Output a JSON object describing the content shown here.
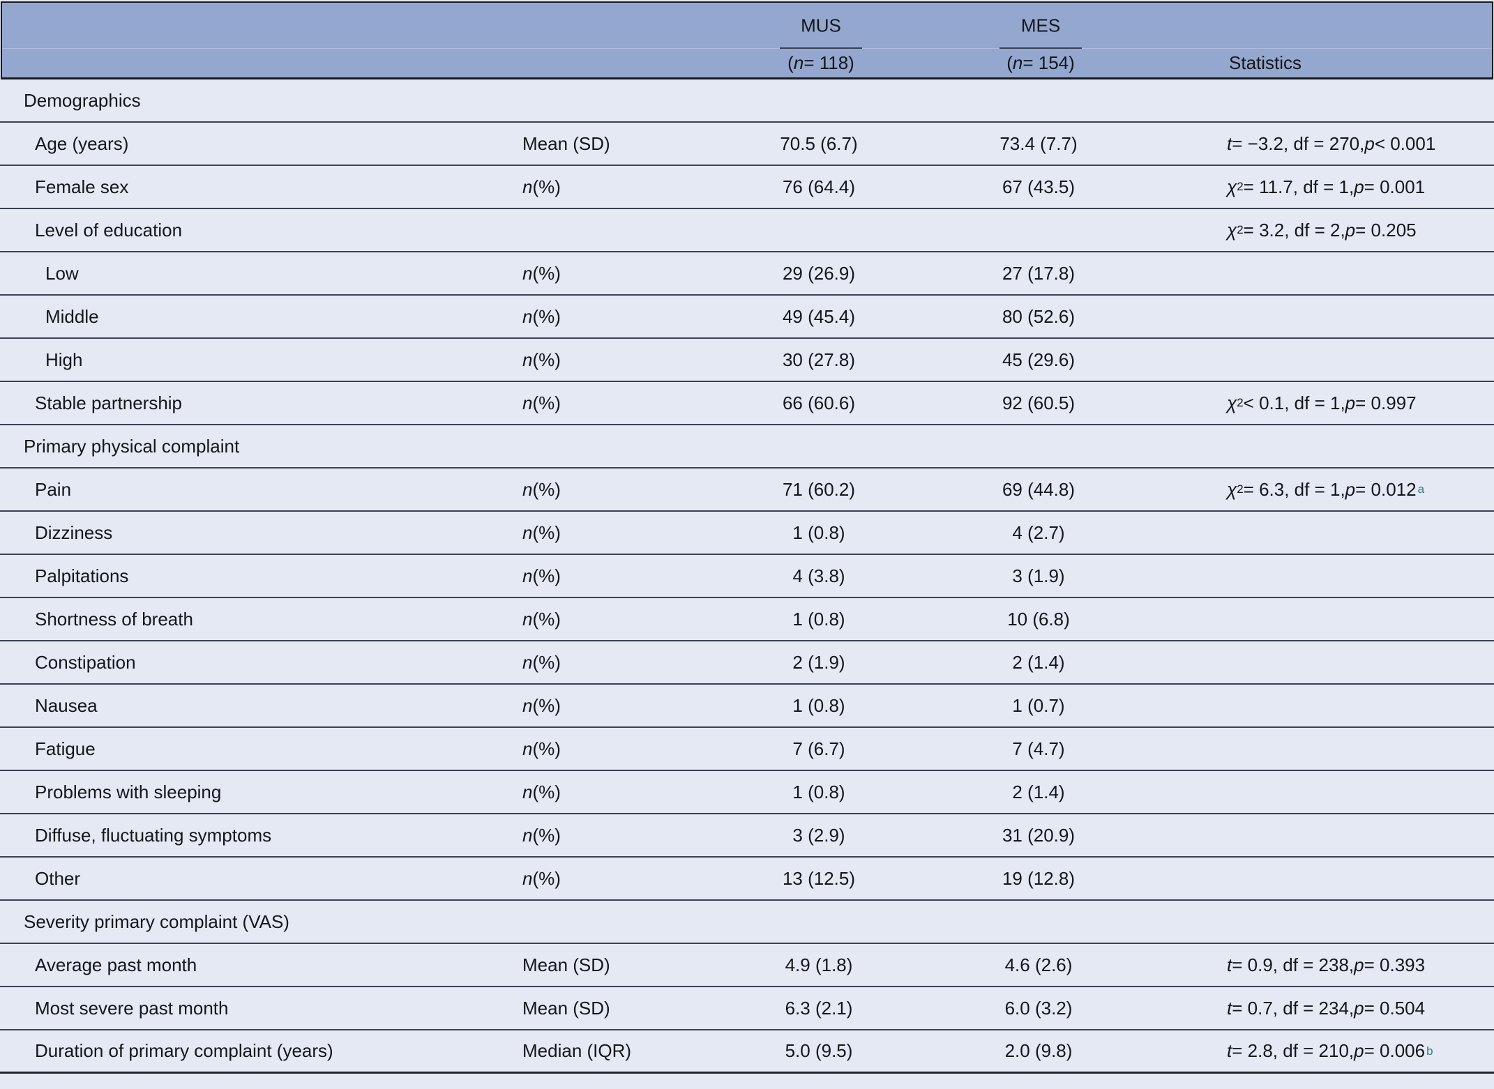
{
  "header": {
    "groups": [
      {
        "label": "MUS",
        "n_open": "(",
        "n_italic": "n",
        "n_rest": " = 118)"
      },
      {
        "label": "MES",
        "n_open": "(",
        "n_italic": "n",
        "n_rest": " = 154)"
      }
    ],
    "stats_label": "Statistics"
  },
  "rows": [
    {
      "type": "section",
      "label": "Demographics",
      "measure_italic": "",
      "measure_rest": "",
      "mus": "",
      "mes": "",
      "stat": {
        "lead_italic": "",
        "sup": "",
        "mid": "",
        "p_italic": "",
        "tail": "",
        "note": ""
      }
    },
    {
      "type": "item",
      "label": "Age (years)",
      "measure_italic": "",
      "measure_rest": "Mean (SD)",
      "mus": "70.5 (6.7)",
      "mes": "73.4 (7.7)",
      "stat": {
        "lead_italic": "t",
        "sup": "",
        "mid": " = −3.2, df = 270, ",
        "p_italic": "p",
        "tail": " < 0.001",
        "note": ""
      }
    },
    {
      "type": "item",
      "label": "Female sex",
      "measure_italic": "n",
      "measure_rest": " (%)",
      "mus": "76 (64.4)",
      "mes": "67 (43.5)",
      "stat": {
        "lead_italic": "χ",
        "sup": "2",
        "mid": " = 11.7, df = 1, ",
        "p_italic": "p",
        "tail": " = 0.001",
        "note": ""
      }
    },
    {
      "type": "item",
      "label": "Level of education",
      "measure_italic": "",
      "measure_rest": "",
      "mus": "",
      "mes": "",
      "stat": {
        "lead_italic": "χ",
        "sup": "2",
        "mid": " = 3.2, df = 2, ",
        "p_italic": "p",
        "tail": " = 0.205",
        "note": ""
      }
    },
    {
      "type": "subitem",
      "label": "Low",
      "measure_italic": "n",
      "measure_rest": " (%)",
      "mus": "29 (26.9)",
      "mes": "27 (17.8)",
      "stat": {
        "lead_italic": "",
        "sup": "",
        "mid": "",
        "p_italic": "",
        "tail": "",
        "note": ""
      }
    },
    {
      "type": "subitem",
      "label": "Middle",
      "measure_italic": "n",
      "measure_rest": " (%)",
      "mus": "49 (45.4)",
      "mes": "80 (52.6)",
      "stat": {
        "lead_italic": "",
        "sup": "",
        "mid": "",
        "p_italic": "",
        "tail": "",
        "note": ""
      }
    },
    {
      "type": "subitem",
      "label": "High",
      "measure_italic": "n",
      "measure_rest": " (%)",
      "mus": "30 (27.8)",
      "mes": "45 (29.6)",
      "stat": {
        "lead_italic": "",
        "sup": "",
        "mid": "",
        "p_italic": "",
        "tail": "",
        "note": ""
      }
    },
    {
      "type": "item",
      "label": "Stable partnership",
      "measure_italic": "n",
      "measure_rest": " (%)",
      "mus": "66 (60.6)",
      "mes": "92 (60.5)",
      "stat": {
        "lead_italic": "χ",
        "sup": "2",
        "mid": " < 0.1, df = 1, ",
        "p_italic": "p",
        "tail": " = 0.997",
        "note": ""
      }
    },
    {
      "type": "section",
      "label": "Primary physical complaint",
      "measure_italic": "",
      "measure_rest": "",
      "mus": "",
      "mes": "",
      "stat": {
        "lead_italic": "",
        "sup": "",
        "mid": "",
        "p_italic": "",
        "tail": "",
        "note": ""
      }
    },
    {
      "type": "item",
      "label": "Pain",
      "measure_italic": "n",
      "measure_rest": " (%)",
      "mus": "71 (60.2)",
      "mes": "69 (44.8)",
      "stat": {
        "lead_italic": "χ",
        "sup": "2",
        "mid": " = 6.3, df = 1, ",
        "p_italic": "p",
        "tail": " = 0.012",
        "note": "a"
      }
    },
    {
      "type": "item",
      "label": "Dizziness",
      "measure_italic": "n",
      "measure_rest": " (%)",
      "mus": "1 (0.8)",
      "mes": "4 (2.7)",
      "stat": {
        "lead_italic": "",
        "sup": "",
        "mid": "",
        "p_italic": "",
        "tail": "",
        "note": ""
      }
    },
    {
      "type": "item",
      "label": "Palpitations",
      "measure_italic": "n",
      "measure_rest": " (%)",
      "mus": "4 (3.8)",
      "mes": "3 (1.9)",
      "stat": {
        "lead_italic": "",
        "sup": "",
        "mid": "",
        "p_italic": "",
        "tail": "",
        "note": ""
      }
    },
    {
      "type": "item",
      "label": "Shortness of breath",
      "measure_italic": "n",
      "measure_rest": " (%)",
      "mus": "1 (0.8)",
      "mes": "10 (6.8)",
      "stat": {
        "lead_italic": "",
        "sup": "",
        "mid": "",
        "p_italic": "",
        "tail": "",
        "note": ""
      }
    },
    {
      "type": "item",
      "label": "Constipation",
      "measure_italic": "n",
      "measure_rest": " (%)",
      "mus": "2 (1.9)",
      "mes": "2 (1.4)",
      "stat": {
        "lead_italic": "",
        "sup": "",
        "mid": "",
        "p_italic": "",
        "tail": "",
        "note": ""
      }
    },
    {
      "type": "item",
      "label": "Nausea",
      "measure_italic": "n",
      "measure_rest": " (%)",
      "mus": "1 (0.8)",
      "mes": "1 (0.7)",
      "stat": {
        "lead_italic": "",
        "sup": "",
        "mid": "",
        "p_italic": "",
        "tail": "",
        "note": ""
      }
    },
    {
      "type": "item",
      "label": "Fatigue",
      "measure_italic": "n",
      "measure_rest": " (%)",
      "mus": "7 (6.7)",
      "mes": "7 (4.7)",
      "stat": {
        "lead_italic": "",
        "sup": "",
        "mid": "",
        "p_italic": "",
        "tail": "",
        "note": ""
      }
    },
    {
      "type": "item",
      "label": "Problems with sleeping",
      "measure_italic": "n",
      "measure_rest": " (%)",
      "mus": "1 (0.8)",
      "mes": "2 (1.4)",
      "stat": {
        "lead_italic": "",
        "sup": "",
        "mid": "",
        "p_italic": "",
        "tail": "",
        "note": ""
      }
    },
    {
      "type": "item",
      "label": "Diffuse, fluctuating symptoms",
      "measure_italic": "n",
      "measure_rest": " (%)",
      "mus": "3 (2.9)",
      "mes": "31 (20.9)",
      "stat": {
        "lead_italic": "",
        "sup": "",
        "mid": "",
        "p_italic": "",
        "tail": "",
        "note": ""
      }
    },
    {
      "type": "item",
      "label": "Other",
      "measure_italic": "n",
      "measure_rest": " (%)",
      "mus": "13 (12.5)",
      "mes": "19 (12.8)",
      "stat": {
        "lead_italic": "",
        "sup": "",
        "mid": "",
        "p_italic": "",
        "tail": "",
        "note": ""
      }
    },
    {
      "type": "section",
      "label": "Severity primary complaint (VAS)",
      "measure_italic": "",
      "measure_rest": "",
      "mus": "",
      "mes": "",
      "stat": {
        "lead_italic": "",
        "sup": "",
        "mid": "",
        "p_italic": "",
        "tail": "",
        "note": ""
      }
    },
    {
      "type": "item",
      "label": "Average past month",
      "measure_italic": "",
      "measure_rest": "Mean (SD)",
      "mus": "4.9 (1.8)",
      "mes": "4.6 (2.6)",
      "stat": {
        "lead_italic": "t",
        "sup": "",
        "mid": " = 0.9, df = 238, ",
        "p_italic": "p",
        "tail": " = 0.393",
        "note": ""
      }
    },
    {
      "type": "item",
      "label": "Most severe past month",
      "measure_italic": "",
      "measure_rest": "Mean (SD)",
      "mus": "6.3 (2.1)",
      "mes": "6.0 (3.2)",
      "stat": {
        "lead_italic": "t",
        "sup": "",
        "mid": " = 0.7, df = 234, ",
        "p_italic": "p",
        "tail": " = 0.504",
        "note": ""
      }
    },
    {
      "type": "item",
      "label": "Duration of primary complaint (years)",
      "measure_italic": "",
      "measure_rest": "Median (IQR)",
      "mus": "5.0 (9.5)",
      "mes": "2.0 (9.8)",
      "stat": {
        "lead_italic": "t",
        "sup": "",
        "mid": " = 2.8, df = 210, ",
        "p_italic": "p",
        "tail": " = 0.006",
        "note": "b"
      }
    }
  ],
  "colors": {
    "header_bg": "#94a7cf",
    "body_bg": "#e4e9f4",
    "divider": "#3a4152",
    "frame": "#17191d",
    "footnote_marker": "#2f7e7e"
  }
}
